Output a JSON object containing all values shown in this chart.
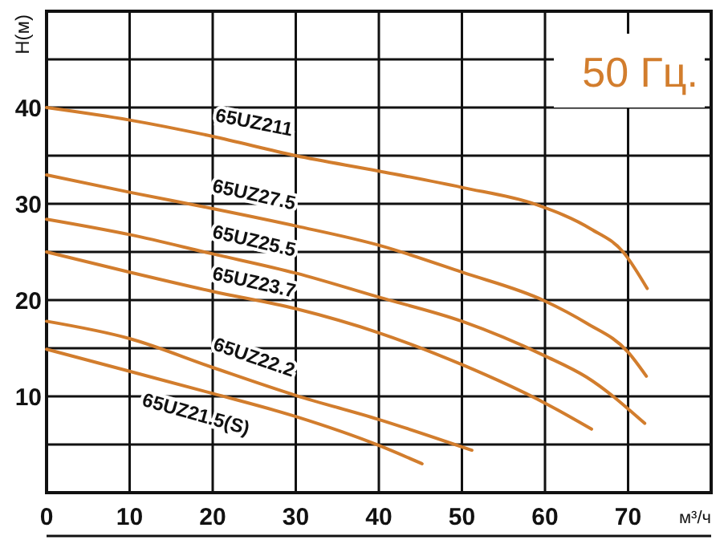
{
  "chart_data": {
    "type": "line",
    "xlabel": "м³/ч",
    "ylabel": "H(м)",
    "annotations": [
      "50 Гц."
    ],
    "xlim": [
      0,
      80
    ],
    "ylim": [
      0,
      50
    ],
    "xticks": [
      0,
      10,
      20,
      30,
      40,
      50,
      60,
      70,
      {
        "value": 80,
        "label": null
      }
    ],
    "yticks": [
      {
        "value": 0,
        "label": null
      },
      {
        "value": 5,
        "label": null
      },
      10,
      {
        "value": 15,
        "label": null
      },
      20,
      {
        "value": 25,
        "label": null
      },
      30,
      {
        "value": 35,
        "label": null
      },
      40,
      {
        "value": 45,
        "label": null
      },
      {
        "value": 50,
        "label": null
      }
    ],
    "grid": true,
    "line_style": "solid",
    "series": [
      {
        "name": "65UZ211",
        "color": "#d27d2d",
        "x": [
          0,
          10,
          20,
          30,
          40,
          50,
          59,
          65.5,
          69.4,
          72.3
        ],
        "values": [
          40,
          38.7,
          37,
          35,
          33.4,
          31.7,
          29.9,
          27.4,
          25,
          21.2
        ]
      },
      {
        "name": "65UZ27.5",
        "color": "#d27d2d",
        "x": [
          0,
          10,
          20,
          30,
          40,
          50,
          60,
          65,
          70,
          72.2
        ],
        "values": [
          33,
          31.2,
          29.5,
          27.7,
          25.7,
          22.9,
          19.9,
          17.6,
          14.6,
          12.1
        ]
      },
      {
        "name": "65UZ25.5",
        "color": "#d27d2d",
        "x": [
          0,
          10,
          20,
          30,
          40,
          50,
          60,
          65,
          72
        ],
        "values": [
          28.4,
          26.8,
          24.8,
          22.8,
          20.3,
          17.8,
          14.2,
          12,
          7.2
        ]
      },
      {
        "name": "65UZ23.7",
        "color": "#d27d2d",
        "x": [
          0,
          10,
          20,
          30,
          40,
          50,
          60,
          65.6
        ],
        "values": [
          25,
          22.9,
          20.9,
          19.1,
          16.6,
          13.3,
          9.3,
          6.6
        ]
      },
      {
        "name": "65UZ22.2",
        "color": "#d27d2d",
        "x": [
          0,
          10,
          20,
          30,
          40,
          51.2
        ],
        "values": [
          17.8,
          16,
          13,
          10.1,
          7.6,
          4.4
        ]
      },
      {
        "name": "65UZ21.5(S)",
        "color": "#d27d2d",
        "x": [
          0,
          10,
          20,
          30,
          40,
          45.2
        ],
        "values": [
          14.9,
          12.6,
          10.3,
          7.9,
          4.9,
          3
        ]
      }
    ]
  }
}
